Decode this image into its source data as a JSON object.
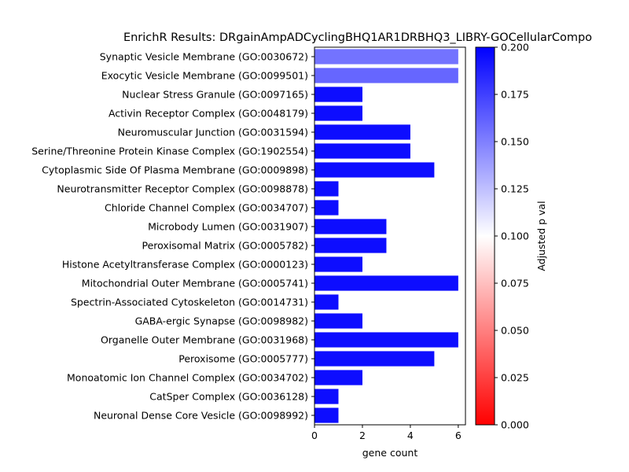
{
  "chart_data": {
    "type": "bar",
    "orientation": "horizontal",
    "title": "EnrichR Results: DRgainAmpADCyclingBHQ1AR1DRBHQ3_LIBRY-GOCellularCompo",
    "xlabel": "gene count",
    "ylabel": "",
    "xlim": [
      0,
      6.3
    ],
    "xticks": [
      0,
      2,
      4,
      6
    ],
    "categories": [
      "Synaptic Vesicle Membrane (GO:0030672)",
      "Exocytic Vesicle Membrane (GO:0099501)",
      "Nuclear Stress Granule (GO:0097165)",
      "Activin Receptor Complex (GO:0048179)",
      "Neuromuscular Junction (GO:0031594)",
      "Serine/Threonine Protein Kinase Complex (GO:1902554)",
      "Cytoplasmic Side Of Plasma Membrane (GO:0009898)",
      "Neurotransmitter Receptor Complex (GO:0098878)",
      "Chloride Channel Complex (GO:0034707)",
      "Microbody Lumen (GO:0031907)",
      "Peroxisomal Matrix (GO:0005782)",
      "Histone Acetyltransferase Complex (GO:0000123)",
      "Mitochondrial Outer Membrane (GO:0005741)",
      "Spectrin-Associated Cytoskeleton (GO:0014731)",
      "GABA-ergic Synapse (GO:0098982)",
      "Organelle Outer Membrane (GO:0031968)",
      "Peroxisome (GO:0005777)",
      "Monoatomic Ion Channel Complex (GO:0034702)",
      "CatSper Complex (GO:0036128)",
      "Neuronal Dense Core Vesicle (GO:0098992)"
    ],
    "values": [
      6,
      6,
      2,
      2,
      4,
      4,
      5,
      1,
      1,
      3,
      3,
      2,
      6,
      1,
      2,
      6,
      5,
      2,
      1,
      1
    ],
    "adjusted_p": [
      0.155,
      0.16,
      0.195,
      0.195,
      0.195,
      0.195,
      0.195,
      0.195,
      0.195,
      0.195,
      0.195,
      0.195,
      0.195,
      0.195,
      0.195,
      0.195,
      0.195,
      0.195,
      0.195,
      0.195
    ],
    "colorbar": {
      "label": "Adjusted p val",
      "range": [
        0.0,
        0.2
      ],
      "ticks": [
        "0.000",
        "0.025",
        "0.050",
        "0.075",
        "0.100",
        "0.125",
        "0.150",
        "0.175",
        "0.200"
      ],
      "colormap": [
        "#ff0000",
        "#ffffff",
        "#0000ff"
      ]
    },
    "grid": false,
    "legend": "none"
  }
}
